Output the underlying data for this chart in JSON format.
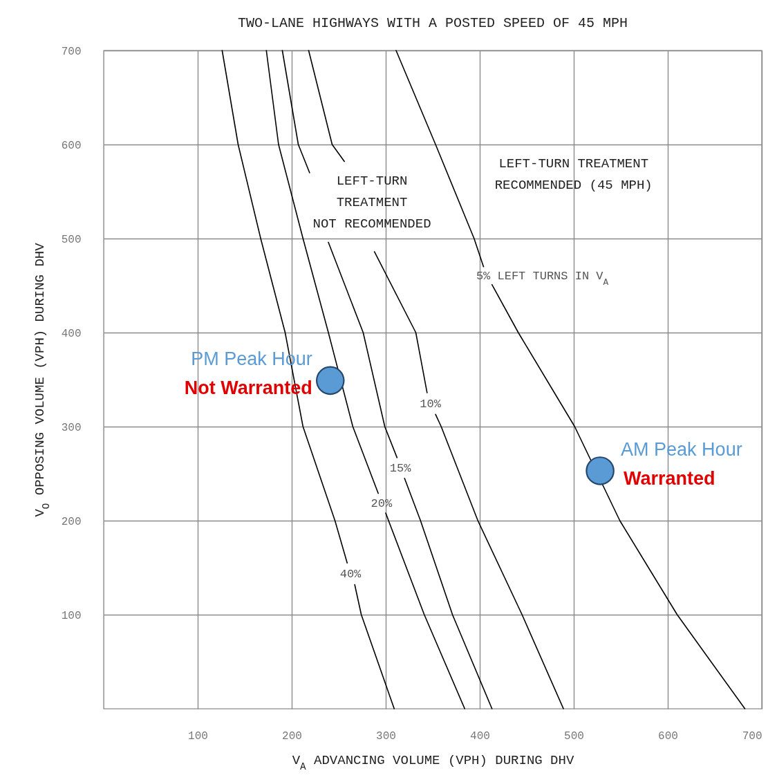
{
  "chart_data": {
    "type": "line",
    "title": "TWO-LANE HIGHWAYS WITH A POSTED SPEED OF 45 MPH",
    "xlabel": "V$_{A}$ ADVANCING VOLUME (VPH) DURING DHV",
    "ylabel": "V$_{O}$ OPPOSING VOLUME (VPH) DURING DHV",
    "xlim": [
      0,
      700
    ],
    "ylim": [
      0,
      700
    ],
    "xticks": [
      100,
      200,
      300,
      400,
      500,
      600,
      700
    ],
    "yticks": [
      100,
      200,
      300,
      400,
      500,
      600,
      700
    ],
    "grid": true,
    "series": [
      {
        "name": "40%",
        "color": "#000000",
        "x": [
          126,
          143,
          167,
          193,
          212,
          246,
          259,
          263,
          267,
          274,
          309
        ],
        "values": [
          700,
          600,
          500,
          400,
          300,
          200,
          155,
          null,
          132,
          100,
          0
        ]
      },
      {
        "name": "20%",
        "color": "#000000",
        "x": [
          173,
          186,
          212,
          239,
          265,
          292,
          296,
          300,
          303,
          341,
          384
        ],
        "values": [
          700,
          600,
          500,
          400,
          300,
          229,
          null,
          208,
          200,
          100,
          0
        ]
      },
      {
        "name": "15%",
        "color": "#000000",
        "x": [
          190,
          207,
          219,
          229,
          239,
          276,
          299,
          312,
          316,
          320,
          337,
          371,
          413
        ],
        "values": [
          700,
          600,
          570,
          null,
          496,
          400,
          300,
          267,
          null,
          245,
          200,
          100,
          0
        ]
      },
      {
        "name": "10%",
        "color": "#000000",
        "x": [
          218,
          243,
          256,
          272,
          288,
          332,
          344,
          348,
          353,
          359,
          398,
          445,
          489
        ],
        "values": [
          700,
          600,
          582,
          null,
          486,
          400,
          336,
          null,
          313,
          300,
          200,
          100,
          0
        ]
      },
      {
        "name": "5% LEFT TURNS IN V$_{A}$",
        "color": "#000000",
        "x": [
          311,
          353,
          394,
          404,
          408,
          413,
          441,
          501,
          549,
          610,
          682
        ],
        "values": [
          700,
          600,
          500,
          470,
          null,
          451,
          400,
          300,
          200,
          100,
          0
        ]
      },
      {
        "type": "scatter",
        "name": "PM Peak Hour",
        "color": "#5b9bd5",
        "x": [
          241
        ],
        "values": [
          349
        ]
      },
      {
        "type": "scatter",
        "name": "AM Peak Hour",
        "color": "#5b9bd5",
        "x": [
          528
        ],
        "values": [
          253
        ]
      }
    ],
    "annotations": [
      "LEFT-TURN\nTREATMENT\nNOT RECOMMENDED",
      "LEFT-TURN TREATMENT\nRECOMMENDED (45 MPH)",
      {
        "text": "Not Warranted",
        "x": 241,
        "y": 349
      },
      {
        "text": "Warranted",
        "x": 528,
        "y": 253
      }
    ]
  }
}
